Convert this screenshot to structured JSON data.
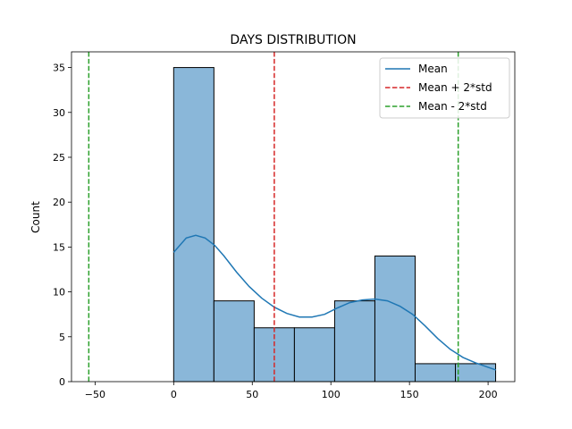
{
  "chart_data": {
    "type": "bar",
    "title": "DAYS DISTRIBUTION",
    "xlabel": "",
    "ylabel": "Count",
    "xlim": [
      -65,
      217
    ],
    "ylim": [
      0,
      36.75
    ],
    "xticks": [
      -50,
      0,
      50,
      100,
      150,
      200
    ],
    "yticks": [
      0,
      5,
      10,
      15,
      20,
      25,
      30,
      35
    ],
    "bins": [
      {
        "x0": 0,
        "x1": 25.6,
        "count": 35
      },
      {
        "x0": 25.6,
        "x1": 51.2,
        "count": 9
      },
      {
        "x0": 51.2,
        "x1": 76.8,
        "count": 6
      },
      {
        "x0": 76.8,
        "x1": 102.4,
        "count": 6
      },
      {
        "x0": 102.4,
        "x1": 128,
        "count": 9
      },
      {
        "x0": 128,
        "x1": 153.6,
        "count": 14
      },
      {
        "x0": 153.6,
        "x1": 179.2,
        "count": 2
      },
      {
        "x0": 179.2,
        "x1": 204.8,
        "count": 2
      }
    ],
    "kde": {
      "x": [
        0,
        8,
        14,
        20,
        26,
        32,
        40,
        48,
        56,
        64,
        72,
        80,
        88,
        96,
        104,
        112,
        120,
        128,
        136,
        144,
        152,
        160,
        168,
        176,
        184,
        192,
        200,
        205
      ],
      "y": [
        14.4,
        16.0,
        16.3,
        16.0,
        15.2,
        14.0,
        12.2,
        10.6,
        9.3,
        8.3,
        7.6,
        7.2,
        7.2,
        7.5,
        8.2,
        8.8,
        9.1,
        9.2,
        9.0,
        8.4,
        7.5,
        6.2,
        4.8,
        3.6,
        2.7,
        2.1,
        1.6,
        1.3
      ]
    },
    "lines": [
      {
        "name": "Mean + 2*std",
        "x": 64,
        "color": "#d62728"
      },
      {
        "name": "Mean - 2*std",
        "x": 181,
        "color": "#2ca02c"
      },
      {
        "name": "Mean - 2*std",
        "x": -54,
        "color": "#2ca02c"
      }
    ],
    "legend": {
      "position": "upper-right",
      "entries": [
        {
          "label": "Mean",
          "color": "#1f77b4",
          "style": "solid"
        },
        {
          "label": "Mean + 2*std",
          "color": "#d62728",
          "style": "dashed"
        },
        {
          "label": "Mean - 2*std",
          "color": "#2ca02c",
          "style": "dashed"
        }
      ]
    },
    "colors": {
      "bar_fill": "#8ab7d9",
      "bar_edge": "#000000",
      "kde": "#1f77b4"
    }
  }
}
